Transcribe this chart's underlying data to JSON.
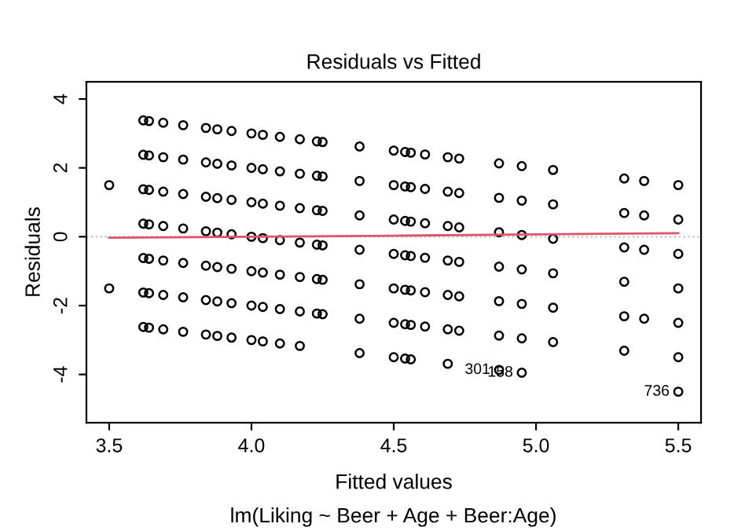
{
  "chart_data": {
    "type": "scatter",
    "title": "Residuals vs Fitted",
    "xlabel": "Fitted values",
    "ylabel": "Residuals",
    "annotations": [
      "lm(Liking ~ Beer + Age + Beer:Age)",
      {
        "text": "301",
        "x": 4.87,
        "y": -3.87
      },
      {
        "text": "158",
        "x": 4.95,
        "y": -3.95
      },
      {
        "text": "736",
        "x": 5.5,
        "y": -4.5
      }
    ],
    "series": [
      {
        "color": "#000000",
        "marker": "circle",
        "x": [
          3.5,
          3.5,
          3.62,
          3.62,
          3.62,
          3.62,
          3.62,
          3.62,
          3.62,
          3.64,
          3.64,
          3.64,
          3.64,
          3.64,
          3.64,
          3.64,
          3.69,
          3.69,
          3.69,
          3.69,
          3.69,
          3.69,
          3.69,
          3.76,
          3.76,
          3.76,
          3.76,
          3.76,
          3.76,
          3.76,
          3.84,
          3.84,
          3.84,
          3.84,
          3.84,
          3.84,
          3.84,
          3.88,
          3.88,
          3.88,
          3.88,
          3.88,
          3.88,
          3.88,
          3.93,
          3.93,
          3.93,
          3.93,
          3.93,
          3.93,
          3.93,
          4.0,
          4.0,
          4.0,
          4.0,
          4.0,
          4.0,
          4.0,
          4.04,
          4.04,
          4.04,
          4.04,
          4.04,
          4.04,
          4.04,
          4.1,
          4.1,
          4.1,
          4.1,
          4.1,
          4.1,
          4.1,
          4.17,
          4.17,
          4.17,
          4.17,
          4.17,
          4.17,
          4.17,
          4.23,
          4.23,
          4.23,
          4.23,
          4.23,
          4.23,
          4.25,
          4.25,
          4.25,
          4.25,
          4.25,
          4.25,
          4.38,
          4.38,
          4.38,
          4.38,
          4.38,
          4.38,
          4.38,
          4.5,
          4.5,
          4.5,
          4.5,
          4.5,
          4.5,
          4.5,
          4.54,
          4.54,
          4.54,
          4.54,
          4.54,
          4.54,
          4.54,
          4.56,
          4.56,
          4.56,
          4.56,
          4.56,
          4.56,
          4.56,
          4.61,
          4.61,
          4.61,
          4.61,
          4.61,
          4.61,
          4.69,
          4.69,
          4.69,
          4.69,
          4.69,
          4.69,
          4.69,
          4.73,
          4.73,
          4.73,
          4.73,
          4.73,
          4.73,
          4.87,
          4.87,
          4.87,
          4.87,
          4.87,
          4.87,
          4.87,
          4.95,
          4.95,
          4.95,
          4.95,
          4.95,
          4.95,
          4.95,
          5.06,
          5.06,
          5.06,
          5.06,
          5.06,
          5.06,
          5.31,
          5.31,
          5.31,
          5.31,
          5.31,
          5.31,
          5.38,
          5.38,
          5.38,
          5.38,
          5.5,
          5.5,
          5.5,
          5.5,
          5.5,
          5.5,
          5.5
        ],
        "values": [
          1.5,
          -1.5,
          3.38,
          2.38,
          1.38,
          0.38,
          -0.62,
          -1.62,
          -2.62,
          3.36,
          2.36,
          1.36,
          0.36,
          -0.64,
          -1.64,
          -2.64,
          3.31,
          2.31,
          1.31,
          0.31,
          -0.69,
          -1.69,
          -2.69,
          3.24,
          2.24,
          1.24,
          0.24,
          -0.76,
          -1.76,
          -2.76,
          3.16,
          2.16,
          1.16,
          0.16,
          -0.84,
          -1.84,
          -2.84,
          3.12,
          2.12,
          1.12,
          0.12,
          -0.88,
          -1.88,
          -2.88,
          3.07,
          2.07,
          1.07,
          0.07,
          -0.93,
          -1.93,
          -2.93,
          3.0,
          2.0,
          1.0,
          0.0,
          -1.0,
          -2.0,
          -3.0,
          2.96,
          1.96,
          0.96,
          -0.04,
          -1.04,
          -2.04,
          -3.04,
          2.9,
          1.9,
          0.9,
          -0.1,
          -1.1,
          -2.1,
          -3.1,
          2.83,
          1.83,
          0.83,
          -0.17,
          -1.17,
          -2.17,
          -3.17,
          2.77,
          1.77,
          0.77,
          -0.23,
          -1.23,
          -2.23,
          2.75,
          1.75,
          0.75,
          -0.25,
          -1.25,
          -2.25,
          2.62,
          1.62,
          0.62,
          -0.38,
          -1.38,
          -2.38,
          -3.38,
          2.5,
          1.5,
          0.5,
          -0.5,
          -1.5,
          -2.5,
          -3.5,
          2.46,
          1.46,
          0.46,
          -0.54,
          -1.54,
          -2.54,
          -3.54,
          2.44,
          1.44,
          0.44,
          -0.56,
          -1.56,
          -2.56,
          -3.56,
          2.39,
          1.39,
          0.39,
          -0.61,
          -1.61,
          -2.61,
          2.31,
          1.31,
          0.31,
          -0.69,
          -1.69,
          -2.69,
          -3.69,
          2.27,
          1.27,
          0.27,
          -0.73,
          -1.73,
          -2.73,
          2.13,
          1.13,
          0.13,
          -0.87,
          -1.87,
          -2.87,
          -3.87,
          2.05,
          1.05,
          0.05,
          -0.95,
          -1.95,
          -2.95,
          -3.95,
          1.94,
          0.94,
          -0.06,
          -1.06,
          -2.06,
          -3.06,
          1.69,
          0.69,
          -0.31,
          -1.31,
          -2.31,
          -3.31,
          1.62,
          0.62,
          -0.38,
          -2.38,
          1.5,
          0.5,
          -0.5,
          -1.5,
          -2.5,
          -3.5,
          -4.5
        ]
      },
      {
        "type": "line",
        "color": "#df536b",
        "marker": "none",
        "x": [
          3.5,
          4.0,
          4.5,
          5.0,
          5.5
        ],
        "values": [
          -0.03,
          0.0,
          0.03,
          0.07,
          0.1
        ]
      }
    ],
    "ref_lines": [
      {
        "axis": "y",
        "value": 0,
        "color": "#bebebe",
        "line_style": "dotted"
      }
    ],
    "xlim": [
      3.42,
      5.58
    ],
    "ylim": [
      -5.4,
      4.5
    ],
    "xticks": [
      3.5,
      {
        "value": 4,
        "label": "4.0"
      },
      4.5,
      {
        "value": 5,
        "label": "5.0"
      },
      5.5
    ],
    "yticks": [
      -4,
      -2,
      0,
      2,
      4
    ],
    "grid": false,
    "legend": false
  }
}
